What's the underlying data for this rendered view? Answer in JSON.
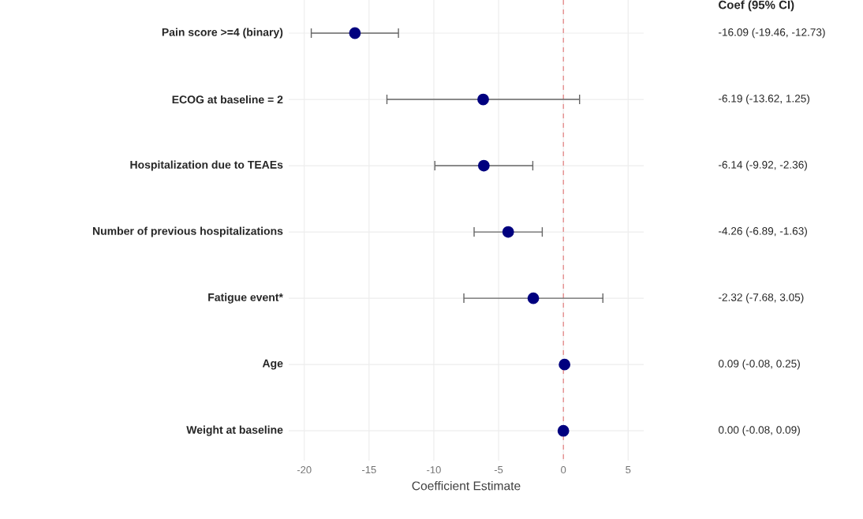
{
  "chart_data": {
    "type": "scatter",
    "orientation": "horizontal",
    "xlabel": "Coefficient Estimate",
    "categories": [
      "Pain score >=4 (binary)",
      "ECOG at baseline = 2",
      "Hospitalization due to TEAEs",
      "Number of previous hospitalizations",
      "Fatigue event*",
      "Age",
      "Weight at baseline"
    ],
    "values": [
      -16.09,
      -6.19,
      -6.14,
      -4.26,
      -2.32,
      0.09,
      0.0
    ],
    "errors": [
      [
        -19.46,
        -12.73
      ],
      [
        -13.62,
        1.25
      ],
      [
        -9.92,
        -2.36
      ],
      [
        -6.89,
        -1.63
      ],
      [
        -7.68,
        3.05
      ],
      [
        -0.08,
        0.25
      ],
      [
        -0.08,
        0.09
      ]
    ],
    "color": "#00007f",
    "xlim": [
      -21.2,
      6.2
    ],
    "xticks": [
      -20,
      -15,
      -10,
      -5,
      0,
      5
    ],
    "ref_lines": [
      {
        "axis": "x",
        "value": 0,
        "color": "#e06666",
        "line_style": "dashed"
      }
    ],
    "annotations": [
      "Coef (95% CI)",
      "-16.09 (-19.46, -12.73)",
      "-6.19 (-13.62, 1.25)",
      "-6.14 (-9.92, -2.36)",
      "-4.26 (-6.89, -1.63)",
      "-2.32 (-7.68, 3.05)",
      "0.09 (-0.08, 0.25)",
      "0.00 (-0.08, 0.09)"
    ],
    "grid": true
  }
}
